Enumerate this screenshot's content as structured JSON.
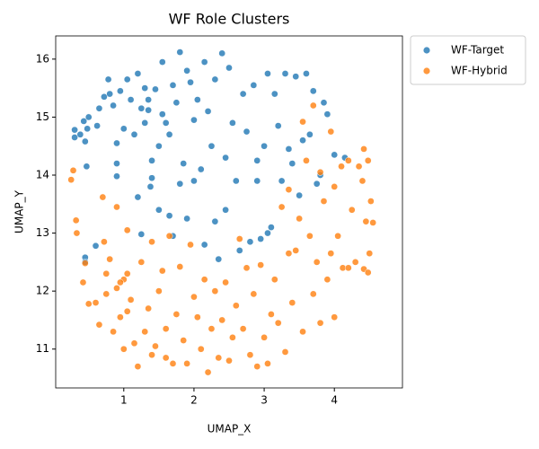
{
  "chart_data": {
    "type": "scatter",
    "title": "WF Role Clusters",
    "x_label": "UMAP_X",
    "y_label": "UMAP_Y",
    "xlim": [
      0.03,
      4.97
    ],
    "ylim": [
      10.33,
      16.4
    ],
    "xticks": [
      1,
      2,
      3,
      4
    ],
    "yticks": [
      11,
      12,
      13,
      14,
      15,
      16
    ],
    "alpha": 0.8,
    "series": [
      {
        "name": "WF-Target",
        "color": "#1f77b4",
        "x": [
          0.3,
          0.3,
          0.38,
          0.43,
          0.45,
          0.45,
          0.45,
          0.47,
          0.48,
          0.5,
          0.6,
          0.62,
          0.65,
          0.72,
          0.78,
          0.8,
          0.85,
          0.9,
          0.9,
          0.9,
          0.95,
          1.0,
          1.05,
          1.1,
          1.15,
          1.2,
          1.2,
          1.25,
          1.25,
          1.3,
          1.3,
          1.35,
          1.35,
          1.38,
          1.4,
          1.4,
          1.45,
          1.5,
          1.5,
          1.55,
          1.55,
          1.6,
          1.65,
          1.65,
          1.7,
          1.75,
          1.8,
          1.8,
          1.85,
          1.9,
          1.9,
          1.95,
          2.0,
          2.0,
          2.05,
          2.1,
          2.15,
          2.15,
          2.2,
          2.25,
          2.3,
          2.3,
          2.35,
          2.4,
          2.45,
          2.5,
          2.55,
          2.6,
          2.65,
          2.7,
          2.75,
          2.8,
          2.85,
          2.9,
          2.95,
          3.0,
          3.05,
          3.1,
          3.15,
          3.2,
          3.25,
          3.3,
          3.35,
          3.4,
          3.45,
          3.5,
          3.55,
          3.6,
          3.65,
          3.7,
          3.75,
          3.8,
          3.85,
          3.9,
          4.0,
          4.15,
          3.05,
          2.45,
          1.7,
          2.9
        ],
        "values": [
          14.65,
          14.78,
          14.7,
          14.93,
          14.58,
          12.58,
          12.5,
          14.15,
          14.8,
          15.0,
          12.78,
          14.85,
          15.15,
          15.35,
          15.65,
          15.4,
          15.2,
          13.98,
          14.2,
          14.55,
          15.45,
          14.8,
          15.65,
          15.3,
          14.7,
          15.75,
          13.62,
          15.15,
          12.98,
          15.5,
          14.9,
          15.12,
          15.3,
          13.8,
          14.25,
          13.95,
          15.48,
          14.5,
          13.4,
          15.05,
          15.95,
          14.9,
          13.3,
          14.7,
          15.55,
          15.25,
          16.12,
          13.85,
          14.2,
          15.8,
          13.25,
          15.6,
          14.95,
          13.9,
          15.3,
          14.1,
          15.95,
          12.8,
          15.1,
          14.5,
          15.65,
          13.2,
          12.55,
          16.1,
          14.3,
          15.85,
          14.9,
          13.9,
          12.7,
          15.4,
          14.75,
          12.85,
          15.55,
          13.9,
          12.9,
          14.5,
          15.75,
          13.1,
          15.4,
          14.85,
          13.9,
          15.75,
          14.45,
          14.2,
          15.7,
          13.65,
          14.6,
          15.75,
          14.7,
          15.45,
          13.85,
          14.0,
          15.25,
          15.05,
          14.35,
          14.3,
          13.0,
          13.4,
          12.95,
          14.25
        ]
      },
      {
        "name": "WF-Hybrid",
        "color": "#ff7f0e",
        "x": [
          0.25,
          0.28,
          0.32,
          0.33,
          0.42,
          0.45,
          0.5,
          0.6,
          0.65,
          0.7,
          0.72,
          0.75,
          0.75,
          0.8,
          0.85,
          0.9,
          0.9,
          0.95,
          1.0,
          1.0,
          1.05,
          1.05,
          1.1,
          1.15,
          1.2,
          1.25,
          1.3,
          1.35,
          1.4,
          1.4,
          1.45,
          1.5,
          1.55,
          1.6,
          1.6,
          1.65,
          1.7,
          1.75,
          1.8,
          1.85,
          1.9,
          1.95,
          2.0,
          2.05,
          2.1,
          2.15,
          2.2,
          2.25,
          2.3,
          2.35,
          2.4,
          2.45,
          2.5,
          2.55,
          2.6,
          2.65,
          2.7,
          2.75,
          2.8,
          2.85,
          2.9,
          2.95,
          3.0,
          3.05,
          3.1,
          3.15,
          3.2,
          3.25,
          3.3,
          3.35,
          3.35,
          3.4,
          3.45,
          3.5,
          3.55,
          3.6,
          3.65,
          3.7,
          3.75,
          3.8,
          3.8,
          3.85,
          3.9,
          3.95,
          4.0,
          4.0,
          4.05,
          4.1,
          4.12,
          4.2,
          4.25,
          4.3,
          4.35,
          4.4,
          4.42,
          4.45,
          4.48,
          4.5,
          4.52,
          4.55,
          4.42,
          4.48,
          4.2,
          3.95,
          3.7,
          3.55,
          1.05,
          0.95
        ],
        "values": [
          13.92,
          14.08,
          13.22,
          13.0,
          12.15,
          12.48,
          11.78,
          11.8,
          11.42,
          13.62,
          12.85,
          12.3,
          11.95,
          12.55,
          11.3,
          13.45,
          12.05,
          11.55,
          12.2,
          11.0,
          13.05,
          11.65,
          11.85,
          11.1,
          10.7,
          12.5,
          11.3,
          11.7,
          10.9,
          12.85,
          11.05,
          12.0,
          12.35,
          11.35,
          10.85,
          12.95,
          10.75,
          11.6,
          12.42,
          11.15,
          10.75,
          12.8,
          11.9,
          11.55,
          11.0,
          12.2,
          10.6,
          11.35,
          12.0,
          10.85,
          11.5,
          12.15,
          10.8,
          11.2,
          11.75,
          12.9,
          11.35,
          12.4,
          10.9,
          11.95,
          10.7,
          12.45,
          11.2,
          10.75,
          11.6,
          12.2,
          11.45,
          13.45,
          10.95,
          12.65,
          13.75,
          11.8,
          12.7,
          13.25,
          11.3,
          14.25,
          12.95,
          11.95,
          12.5,
          14.05,
          11.45,
          13.55,
          12.2,
          12.65,
          13.8,
          11.55,
          12.95,
          14.15,
          12.4,
          12.4,
          13.4,
          12.5,
          14.15,
          13.9,
          12.38,
          13.2,
          14.25,
          12.65,
          13.55,
          13.18,
          14.45,
          12.32,
          14.25,
          14.75,
          15.2,
          14.92,
          12.3,
          12.15
        ]
      }
    ]
  }
}
